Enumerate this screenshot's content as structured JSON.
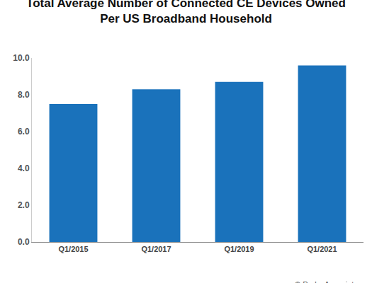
{
  "chart_data": {
    "type": "bar",
    "title": [
      "Total Average Number of Connected CE Devices Owned",
      "Per US Broadband Household"
    ],
    "categories": [
      "Q1/2015",
      "Q1/2017",
      "Q1/2019",
      "Q1/2021"
    ],
    "values": [
      7.5,
      8.3,
      8.7,
      9.6
    ],
    "color": "#1a72bb",
    "ylim": [
      0,
      10
    ],
    "yticks": [
      {
        "value": 0,
        "label": "0.0"
      },
      {
        "value": 2,
        "label": "2.0"
      },
      {
        "value": 4,
        "label": "4.0"
      },
      {
        "value": 6,
        "label": "6.0"
      },
      {
        "value": 8,
        "label": "8.0"
      },
      {
        "value": 10,
        "label": "10.0"
      }
    ],
    "grid": false,
    "annotations": [
      "© Parks Associates"
    ]
  }
}
